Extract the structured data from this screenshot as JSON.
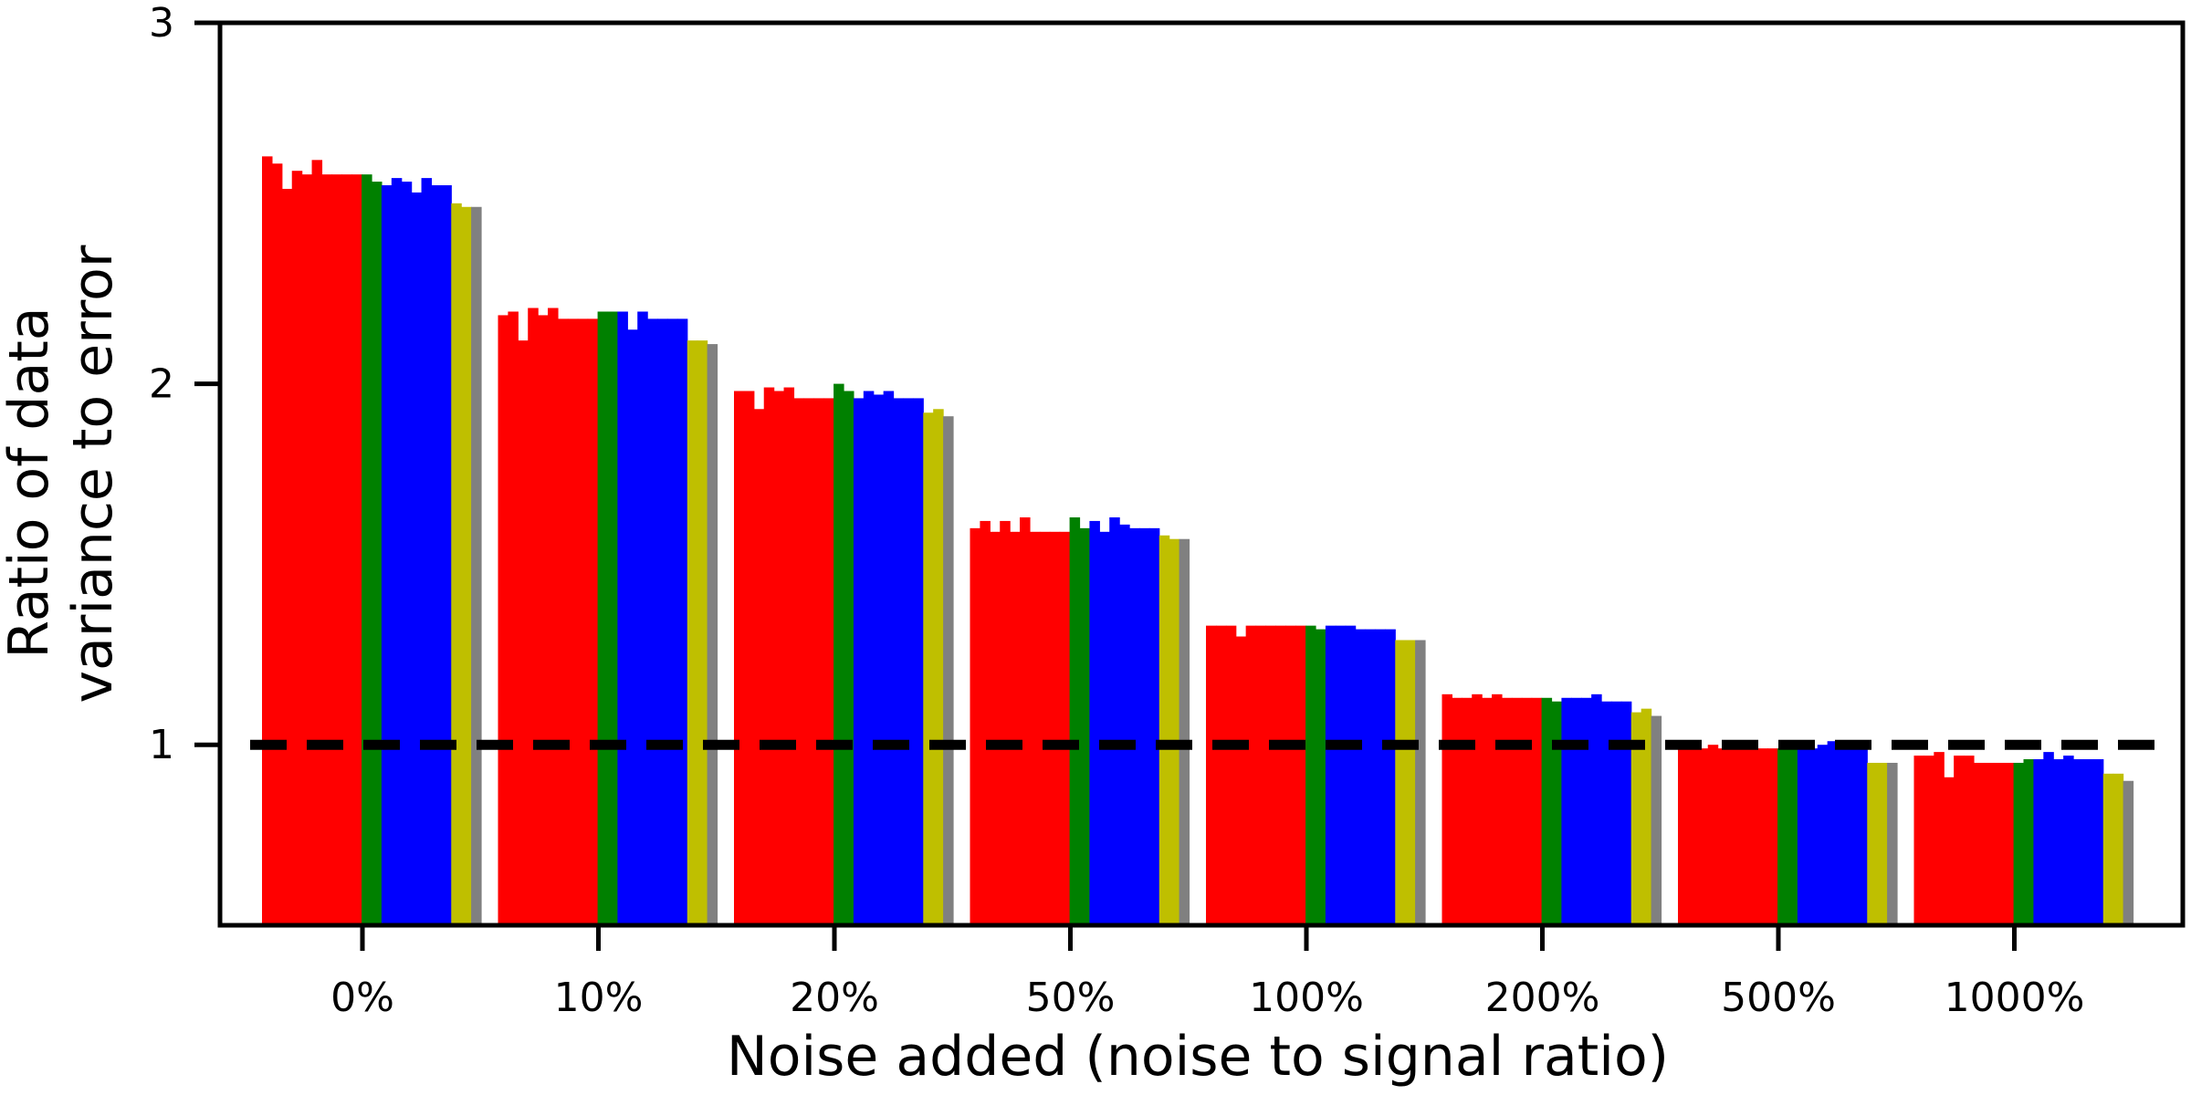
{
  "chart_data": {
    "type": "bar",
    "title": "",
    "xlabel": "Noise added (noise to signal ratio)",
    "ylabel_lines": [
      "Ratio of data",
      "variance to error"
    ],
    "categories": [
      "0%",
      "10%",
      "20%",
      "50%",
      "100%",
      "200%",
      "500%",
      "1000%"
    ],
    "ylim": [
      0.5,
      3
    ],
    "yticks": [
      "1",
      "2",
      "3"
    ],
    "ytick_values": [
      1,
      2,
      3
    ],
    "reference_line": {
      "y": 1,
      "style": "dashed",
      "color": "#000000"
    },
    "grid": false,
    "legend": "none",
    "bar_colors": [
      "#ff0000",
      "#ff0000",
      "#ff0000",
      "#ff0000",
      "#ff0000",
      "#ff0000",
      "#ff0000",
      "#ff0000",
      "#ff0000",
      "#ff0000",
      "#008000",
      "#008000",
      "#0000ff",
      "#0000ff",
      "#0000ff",
      "#0000ff",
      "#0000ff",
      "#0000ff",
      "#0000ff",
      "#bfbf00",
      "#bfbf00",
      "#808080"
    ],
    "groups": [
      [
        2.63,
        2.61,
        2.54,
        2.59,
        2.58,
        2.62,
        2.58,
        2.58,
        2.58,
        2.58,
        2.58,
        2.56,
        2.55,
        2.57,
        2.56,
        2.53,
        2.57,
        2.55,
        2.55,
        2.5,
        2.49,
        2.49
      ],
      [
        2.19,
        2.2,
        2.12,
        2.21,
        2.19,
        2.21,
        2.18,
        2.18,
        2.18,
        2.18,
        2.2,
        2.2,
        2.2,
        2.15,
        2.2,
        2.18,
        2.18,
        2.18,
        2.18,
        2.12,
        2.12,
        2.11
      ],
      [
        1.98,
        1.98,
        1.93,
        1.99,
        1.98,
        1.99,
        1.96,
        1.96,
        1.96,
        1.96,
        2.0,
        1.98,
        1.96,
        1.98,
        1.97,
        1.98,
        1.96,
        1.96,
        1.96,
        1.92,
        1.93,
        1.91
      ],
      [
        1.6,
        1.62,
        1.59,
        1.62,
        1.59,
        1.63,
        1.59,
        1.59,
        1.59,
        1.59,
        1.63,
        1.6,
        1.62,
        1.59,
        1.63,
        1.61,
        1.6,
        1.6,
        1.6,
        1.58,
        1.57,
        1.57
      ],
      [
        1.33,
        1.33,
        1.33,
        1.3,
        1.33,
        1.33,
        1.33,
        1.33,
        1.33,
        1.33,
        1.33,
        1.32,
        1.33,
        1.33,
        1.33,
        1.32,
        1.32,
        1.32,
        1.32,
        1.29,
        1.29,
        1.29
      ],
      [
        1.14,
        1.13,
        1.13,
        1.14,
        1.13,
        1.14,
        1.13,
        1.13,
        1.13,
        1.13,
        1.13,
        1.12,
        1.13,
        1.13,
        1.13,
        1.14,
        1.12,
        1.12,
        1.12,
        1.09,
        1.1,
        1.08
      ],
      [
        0.99,
        1.0,
        0.99,
        1.0,
        0.99,
        1.0,
        0.99,
        0.99,
        0.99,
        0.99,
        0.99,
        1.0,
        0.99,
        0.99,
        1.0,
        1.01,
        0.99,
        0.99,
        0.99,
        0.95,
        0.95,
        0.95
      ],
      [
        0.97,
        0.97,
        0.98,
        0.91,
        0.97,
        0.97,
        0.95,
        0.95,
        0.95,
        0.95,
        0.95,
        0.96,
        0.96,
        0.98,
        0.96,
        0.97,
        0.96,
        0.96,
        0.96,
        0.92,
        0.92,
        0.9
      ]
    ]
  }
}
